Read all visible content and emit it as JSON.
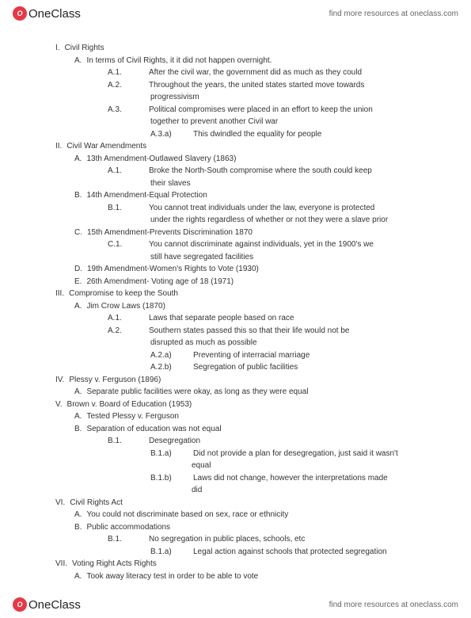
{
  "brand": {
    "logo_initial": "O",
    "name": "OneClass",
    "find_more": "find more resources at oneclass.com"
  },
  "outline": [
    {
      "lvl": 1,
      "num": "I.",
      "text": "Civil Rights"
    },
    {
      "lvl": 2,
      "num": "A.",
      "text": "In terms of Civil Rights, it it did not happen overnight."
    },
    {
      "lvl": 3,
      "num": "A.1.",
      "text": "After the civil war, the government did as much as they could"
    },
    {
      "lvl": 3,
      "num": "A.2.",
      "text": "Throughout the years, the united states started move towards"
    },
    {
      "lvl": "3c",
      "num": "",
      "text": "progressivism"
    },
    {
      "lvl": 3,
      "num": "A.3.",
      "text": "Political compromises were placed in an effort to keep the union"
    },
    {
      "lvl": "3c",
      "num": "",
      "text": "together to prevent another Civil war"
    },
    {
      "lvl": 4,
      "num": "A.3.a)",
      "text": "This dwindled the equality for people"
    },
    {
      "lvl": 1,
      "num": "II.",
      "text": "Civil War Amendments"
    },
    {
      "lvl": 2,
      "num": "A.",
      "text": "13th Amendment-Outlawed Slavery (1863)"
    },
    {
      "lvl": 3,
      "num": "A.1.",
      "text": "Broke the North-South compromise where the south could keep"
    },
    {
      "lvl": "3c",
      "num": "",
      "text": "their slaves"
    },
    {
      "lvl": 2,
      "num": "B.",
      "text": "14th Amendment-Equal Protection"
    },
    {
      "lvl": 3,
      "num": "B.1.",
      "text": "You cannot treat individuals under the law, everyone is protected"
    },
    {
      "lvl": "3c",
      "num": "",
      "text": "under the rights regardless of whether or not they were a slave prior"
    },
    {
      "lvl": 2,
      "num": "C.",
      "text": "15th Amendment-Prevents Discrimination 1870"
    },
    {
      "lvl": 3,
      "num": "C.1.",
      "text": "You cannot discriminate against individuals, yet in the 1900's we"
    },
    {
      "lvl": "3c",
      "num": "",
      "text": "still have segregated facilities"
    },
    {
      "lvl": 2,
      "num": "D.",
      "text": "19th Amendment-Women's Rights to Vote (1930)"
    },
    {
      "lvl": 2,
      "num": "E.",
      "text": "26th Amendment- Voting age of 18 (1971)"
    },
    {
      "lvl": 1,
      "num": "III.",
      "text": "Compromise to keep the South"
    },
    {
      "lvl": 2,
      "num": "A.",
      "text": "Jim Crow Laws (1870)"
    },
    {
      "lvl": 3,
      "num": "A.1.",
      "text": "Laws that separate people based on race"
    },
    {
      "lvl": 3,
      "num": "A.2.",
      "text": "Southern states passed this so that their life would not be"
    },
    {
      "lvl": "3c",
      "num": "",
      "text": "disrupted as much as possible"
    },
    {
      "lvl": 4,
      "num": "A.2.a)",
      "text": "Preventing of interracial marriage"
    },
    {
      "lvl": 4,
      "num": "A.2.b)",
      "text": "Segregation of public facilities"
    },
    {
      "lvl": 1,
      "num": "IV.",
      "text": "Plessy v. Ferguson (1896)"
    },
    {
      "lvl": 2,
      "num": "A.",
      "text": "Separate public facilities were okay, as long as they were equal"
    },
    {
      "lvl": 1,
      "num": "V.",
      "text": "Brown v. Board of Education (1953)"
    },
    {
      "lvl": 2,
      "num": "A.",
      "text": "Tested Plessy v. Ferguson"
    },
    {
      "lvl": 2,
      "num": "B.",
      "text": "Separation of education was not equal"
    },
    {
      "lvl": 3,
      "num": "B.1.",
      "text": "Desegregation"
    },
    {
      "lvl": 4,
      "num": "B.1.a)",
      "text": "Did not provide a plan for desegregation, just said it wasn't"
    },
    {
      "lvl": "4c",
      "num": "",
      "text": "equal"
    },
    {
      "lvl": 4,
      "num": "B.1.b)",
      "text": "Laws did not change, however the interpretations made"
    },
    {
      "lvl": "4c",
      "num": "",
      "text": "did"
    },
    {
      "lvl": 1,
      "num": "VI.",
      "text": "Civil Rights Act"
    },
    {
      "lvl": 2,
      "num": "A.",
      "text": "You could not discriminate based on sex, race or ethnicity"
    },
    {
      "lvl": 2,
      "num": "B.",
      "text": "Public accommodations"
    },
    {
      "lvl": 3,
      "num": "B.1.",
      "text": "No segregation in public places, schools, etc"
    },
    {
      "lvl": 4,
      "num": "B.1.a)",
      "text": "Legal action against schools that protected segregation"
    },
    {
      "lvl": 1,
      "num": "VII.",
      "text": "Voting Right Acts Rights"
    },
    {
      "lvl": 2,
      "num": "A.",
      "text": "Took away literacy test in order to be able to vote"
    }
  ]
}
